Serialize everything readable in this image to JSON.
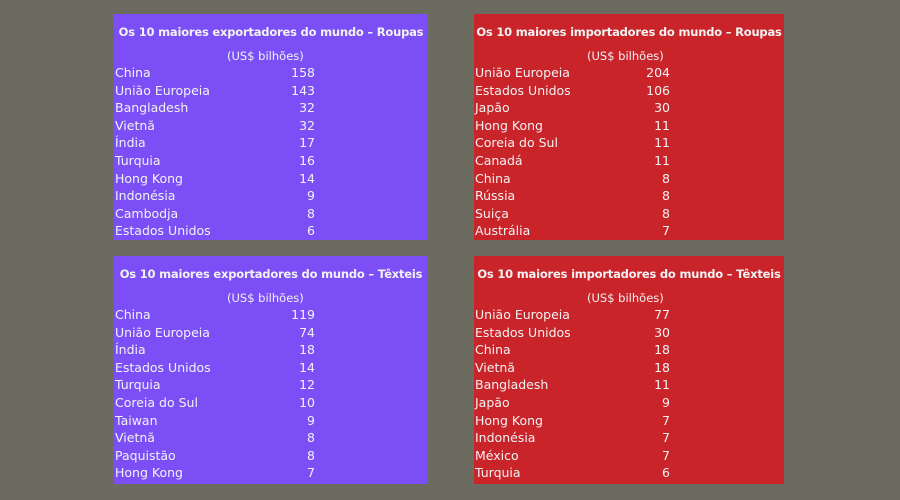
{
  "chart_data": [
    {
      "type": "table",
      "title": "Os 10 maiores exportadores do mundo – Roupas",
      "unit": "(US$ bilhões)",
      "color": "#7b4ff5",
      "rows": [
        {
          "country": "China",
          "value": 158
        },
        {
          "country": "União Europeia",
          "value": 143
        },
        {
          "country": "Bangladesh",
          "value": 32
        },
        {
          "country": "Vietnã",
          "value": 32
        },
        {
          "country": "Índia",
          "value": 17
        },
        {
          "country": "Turquia",
          "value": 16
        },
        {
          "country": "Hong Kong",
          "value": 14
        },
        {
          "country": "Indonésia",
          "value": 9
        },
        {
          "country": "Cambodja",
          "value": 8
        },
        {
          "country": "Estados Unidos",
          "value": 6
        }
      ]
    },
    {
      "type": "table",
      "title": "Os 10 maiores importadores do mundo – Roupas",
      "unit": "(US$ bilhões)",
      "color": "#c8242a",
      "rows": [
        {
          "country": "União Europeia",
          "value": 204
        },
        {
          "country": "Estados Unidos",
          "value": 106
        },
        {
          "country": "Japão",
          "value": 30
        },
        {
          "country": "Hong Kong",
          "value": 11
        },
        {
          "country": "Coreia do Sul",
          "value": 11
        },
        {
          "country": "Canadá",
          "value": 11
        },
        {
          "country": "China",
          "value": 8
        },
        {
          "country": "Rússia",
          "value": 8
        },
        {
          "country": "Suiça",
          "value": 8
        },
        {
          "country": "Austrália",
          "value": 7
        }
      ]
    },
    {
      "type": "table",
      "title": "Os 10 maiores exportadores do mundo – Têxteis",
      "unit": "(US$ bilhões)",
      "color": "#7b4ff5",
      "rows": [
        {
          "country": "China",
          "value": 119
        },
        {
          "country": "União Europeia",
          "value": 74
        },
        {
          "country": "Índia",
          "value": 18
        },
        {
          "country": "Estados Unidos",
          "value": 14
        },
        {
          "country": "Turquia",
          "value": 12
        },
        {
          "country": "Coreia do Sul",
          "value": 10
        },
        {
          "country": "Taiwan",
          "value": 9
        },
        {
          "country": "Vietnã",
          "value": 8
        },
        {
          "country": "Paquistão",
          "value": 8
        },
        {
          "country": "Hong Kong",
          "value": 7
        }
      ]
    },
    {
      "type": "table",
      "title": "Os 10 maiores importadores do mundo – Têxteis",
      "unit": "(US$ bilhões)",
      "color": "#c8242a",
      "rows": [
        {
          "country": "União Europeia",
          "value": 77
        },
        {
          "country": "Estados Unidos",
          "value": 30
        },
        {
          "country": "China",
          "value": 18
        },
        {
          "country": "Vietnã",
          "value": 18
        },
        {
          "country": "Bangladesh",
          "value": 11
        },
        {
          "country": "Japão",
          "value": 9
        },
        {
          "country": "Hong Kong",
          "value": 7
        },
        {
          "country": "Indonésia",
          "value": 7
        },
        {
          "country": "México",
          "value": 7
        },
        {
          "country": "Turquia",
          "value": 6
        }
      ]
    }
  ]
}
